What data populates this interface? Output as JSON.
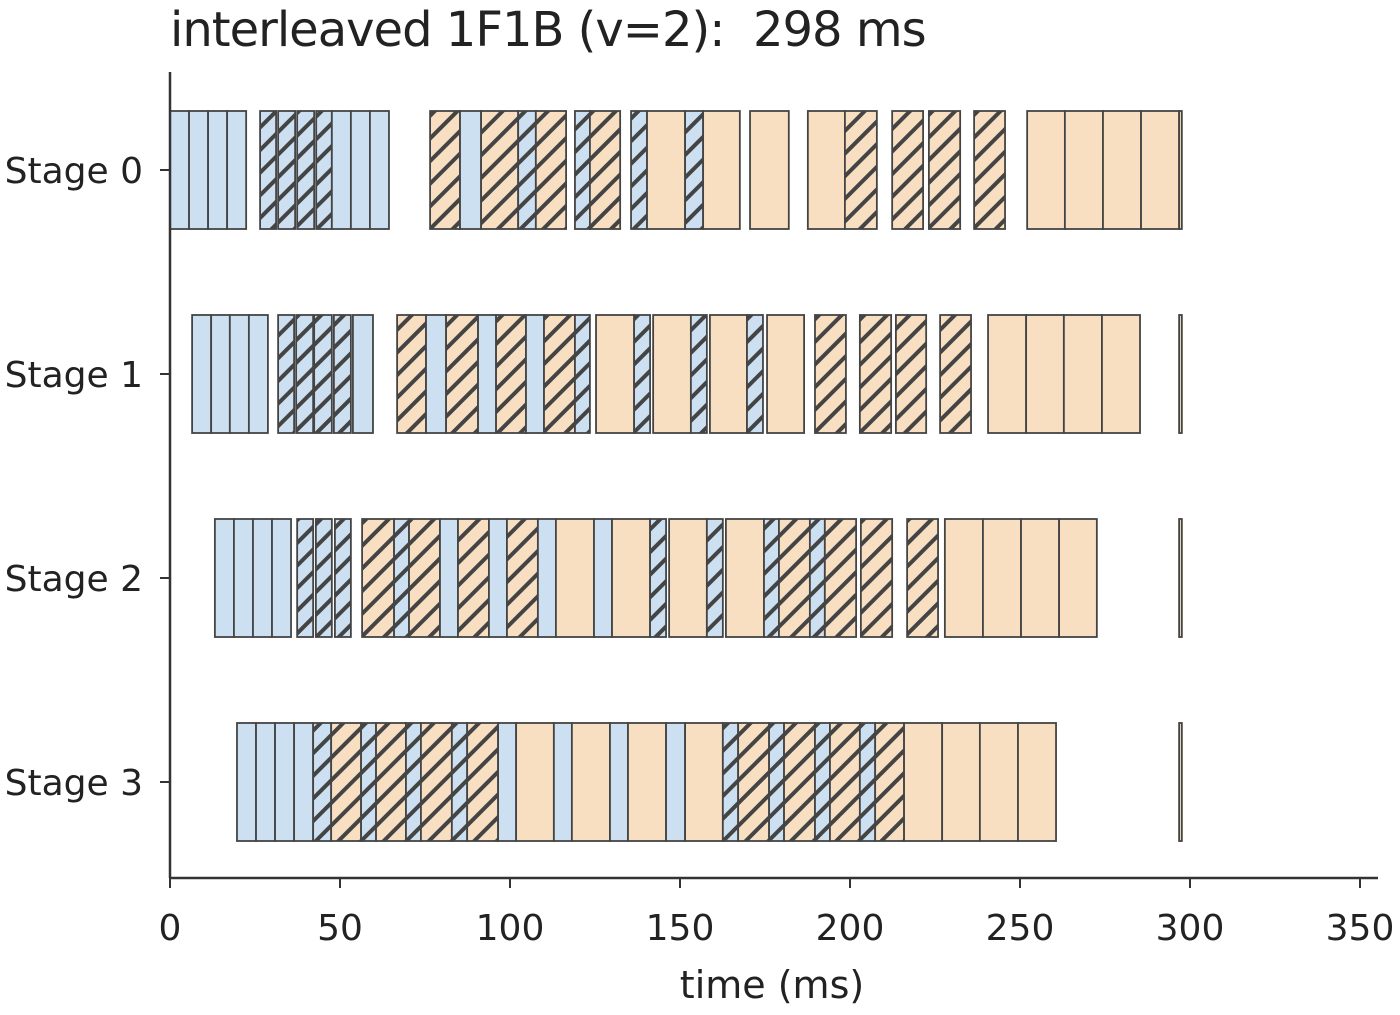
{
  "title": "interleaved 1F1B (v=2):  298 ms",
  "colors": {
    "forward": "#cce0f1",
    "backward": "#f8dfc2",
    "edge": "#444444",
    "axis": "#333333"
  },
  "chart_data": {
    "type": "gantt",
    "title": "interleaved 1F1B (v=2):  298 ms",
    "xlabel": "time (ms)",
    "ylabel": "",
    "xlim": [
      0,
      350
    ],
    "xticks": [
      0,
      50,
      100,
      150,
      200,
      250,
      300,
      350
    ],
    "xtick_labels": [
      "0",
      "50",
      "100",
      "150",
      "200",
      "250",
      "300",
      "350"
    ],
    "stages": [
      "Stage 0",
      "Stage 1",
      "Stage 2",
      "Stage 3"
    ],
    "legend": "none",
    "grid": false,
    "block_fields": [
      "kind",
      "start_ms",
      "end_ms",
      "hatched"
    ],
    "blocks": [
      [
        [
          "F",
          0.0,
          5.6,
          false
        ],
        [
          "F",
          5.6,
          11.2,
          false
        ],
        [
          "F",
          11.2,
          16.8,
          false
        ],
        [
          "F",
          16.8,
          22.4,
          false
        ],
        [
          "F",
          26.5,
          31.2,
          true
        ],
        [
          "F",
          31.8,
          36.8,
          true
        ],
        [
          "F",
          37.4,
          42.4,
          true
        ],
        [
          "F",
          43.0,
          47.6,
          true
        ],
        [
          "F",
          47.6,
          53.2,
          false
        ],
        [
          "F",
          53.2,
          58.8,
          false
        ],
        [
          "F",
          58.8,
          64.4,
          false
        ],
        [
          "B",
          76.5,
          85.3,
          true
        ],
        [
          "F",
          85.3,
          91.5,
          false
        ],
        [
          "B",
          91.5,
          102.4,
          true
        ],
        [
          "F",
          102.4,
          107.6,
          true
        ],
        [
          "B",
          107.6,
          116.5,
          true
        ],
        [
          "F",
          119.1,
          123.5,
          true
        ],
        [
          "B",
          123.5,
          132.4,
          true
        ],
        [
          "F",
          135.6,
          140.3,
          true
        ],
        [
          "B",
          140.3,
          151.5,
          false
        ],
        [
          "F",
          151.5,
          156.8,
          true
        ],
        [
          "B",
          156.8,
          167.6,
          false
        ],
        [
          "B",
          170.6,
          182.0,
          false
        ],
        [
          "B",
          187.6,
          198.5,
          false
        ],
        [
          "B",
          198.5,
          207.9,
          true
        ],
        [
          "B",
          212.4,
          221.5,
          true
        ],
        [
          "B",
          223.2,
          232.4,
          true
        ],
        [
          "B",
          236.5,
          245.6,
          true
        ],
        [
          "B",
          252.1,
          263.2,
          false
        ],
        [
          "B",
          263.2,
          274.4,
          false
        ],
        [
          "B",
          274.4,
          285.6,
          false
        ],
        [
          "B",
          285.6,
          296.8,
          false
        ],
        [
          "B",
          296.8,
          297.6,
          false
        ]
      ],
      [
        [
          "F",
          6.5,
          12.1,
          false
        ],
        [
          "F",
          12.1,
          17.6,
          false
        ],
        [
          "F",
          17.6,
          23.2,
          false
        ],
        [
          "F",
          23.2,
          28.8,
          false
        ],
        [
          "F",
          31.8,
          36.5,
          true
        ],
        [
          "F",
          37.1,
          42.1,
          true
        ],
        [
          "F",
          42.4,
          47.6,
          true
        ],
        [
          "F",
          48.2,
          53.2,
          true
        ],
        [
          "F",
          53.8,
          59.7,
          false
        ],
        [
          "B",
          66.8,
          75.3,
          true
        ],
        [
          "F",
          75.3,
          81.2,
          false
        ],
        [
          "B",
          81.2,
          90.6,
          true
        ],
        [
          "F",
          90.6,
          95.9,
          false
        ],
        [
          "B",
          95.9,
          104.7,
          true
        ],
        [
          "F",
          104.7,
          110.0,
          false
        ],
        [
          "B",
          110.0,
          119.1,
          true
        ],
        [
          "F",
          119.1,
          123.5,
          true
        ],
        [
          "B",
          125.3,
          136.5,
          false
        ],
        [
          "F",
          136.5,
          141.2,
          true
        ],
        [
          "B",
          142.1,
          153.2,
          false
        ],
        [
          "F",
          153.2,
          157.9,
          true
        ],
        [
          "B",
          158.8,
          169.7,
          false
        ],
        [
          "F",
          169.7,
          174.4,
          true
        ],
        [
          "B",
          175.6,
          186.5,
          false
        ],
        [
          "B",
          189.7,
          198.8,
          true
        ],
        [
          "B",
          202.9,
          212.1,
          true
        ],
        [
          "B",
          213.5,
          222.4,
          true
        ],
        [
          "B",
          226.5,
          235.6,
          true
        ],
        [
          "B",
          240.6,
          251.8,
          false
        ],
        [
          "B",
          251.8,
          262.9,
          false
        ],
        [
          "B",
          262.9,
          274.1,
          false
        ],
        [
          "B",
          274.1,
          285.3,
          false
        ],
        [
          "B",
          296.8,
          297.6,
          false
        ]
      ],
      [
        [
          "F",
          13.2,
          18.8,
          false
        ],
        [
          "F",
          18.8,
          24.4,
          false
        ],
        [
          "F",
          24.4,
          30.0,
          false
        ],
        [
          "F",
          30.0,
          35.6,
          false
        ],
        [
          "F",
          37.4,
          42.1,
          true
        ],
        [
          "F",
          42.9,
          47.6,
          true
        ],
        [
          "F",
          48.5,
          53.2,
          true
        ],
        [
          "B",
          56.5,
          65.9,
          true
        ],
        [
          "F",
          65.9,
          70.3,
          true
        ],
        [
          "B",
          70.3,
          79.4,
          true
        ],
        [
          "F",
          79.4,
          84.7,
          false
        ],
        [
          "B",
          84.7,
          93.8,
          true
        ],
        [
          "F",
          93.8,
          99.1,
          false
        ],
        [
          "B",
          99.1,
          108.2,
          true
        ],
        [
          "F",
          108.2,
          113.5,
          false
        ],
        [
          "B",
          113.5,
          124.7,
          false
        ],
        [
          "F",
          124.7,
          130.0,
          false
        ],
        [
          "B",
          130.0,
          141.2,
          false
        ],
        [
          "F",
          141.2,
          145.9,
          true
        ],
        [
          "B",
          146.8,
          157.9,
          false
        ],
        [
          "F",
          157.9,
          162.6,
          true
        ],
        [
          "B",
          163.5,
          174.7,
          false
        ],
        [
          "F",
          174.7,
          179.1,
          true
        ],
        [
          "B",
          179.1,
          188.2,
          true
        ],
        [
          "F",
          188.2,
          192.6,
          true
        ],
        [
          "B",
          192.6,
          201.8,
          true
        ],
        [
          "B",
          203.2,
          212.4,
          true
        ],
        [
          "B",
          216.8,
          225.9,
          true
        ],
        [
          "B",
          227.9,
          239.1,
          false
        ],
        [
          "B",
          239.1,
          250.3,
          false
        ],
        [
          "B",
          250.3,
          261.5,
          false
        ],
        [
          "B",
          261.5,
          272.6,
          false
        ],
        [
          "B",
          296.8,
          297.6,
          false
        ]
      ],
      [
        [
          "F",
          19.7,
          25.3,
          false
        ],
        [
          "F",
          25.3,
          30.9,
          false
        ],
        [
          "F",
          30.9,
          36.5,
          false
        ],
        [
          "F",
          36.5,
          42.1,
          false
        ],
        [
          "F",
          42.1,
          47.4,
          true
        ],
        [
          "B",
          47.4,
          56.2,
          true
        ],
        [
          "F",
          56.2,
          60.6,
          true
        ],
        [
          "B",
          60.6,
          69.4,
          true
        ],
        [
          "F",
          69.4,
          73.8,
          true
        ],
        [
          "B",
          73.8,
          82.9,
          true
        ],
        [
          "F",
          82.9,
          87.4,
          true
        ],
        [
          "B",
          87.4,
          96.5,
          true
        ],
        [
          "F",
          96.5,
          101.8,
          false
        ],
        [
          "B",
          101.8,
          112.9,
          false
        ],
        [
          "F",
          112.9,
          118.2,
          false
        ],
        [
          "B",
          118.2,
          129.4,
          false
        ],
        [
          "F",
          129.4,
          134.7,
          false
        ],
        [
          "B",
          134.7,
          145.9,
          false
        ],
        [
          "F",
          145.9,
          151.5,
          false
        ],
        [
          "B",
          151.5,
          162.6,
          false
        ],
        [
          "F",
          162.6,
          167.1,
          true
        ],
        [
          "B",
          167.1,
          176.2,
          true
        ],
        [
          "F",
          176.2,
          180.6,
          true
        ],
        [
          "B",
          180.6,
          189.7,
          true
        ],
        [
          "F",
          189.7,
          194.1,
          true
        ],
        [
          "B",
          194.1,
          202.9,
          true
        ],
        [
          "F",
          202.9,
          207.4,
          true
        ],
        [
          "B",
          207.4,
          215.9,
          true
        ],
        [
          "B",
          215.9,
          227.1,
          false
        ],
        [
          "B",
          227.1,
          238.2,
          false
        ],
        [
          "B",
          238.2,
          249.4,
          false
        ],
        [
          "B",
          249.4,
          260.6,
          false
        ],
        [
          "B",
          296.8,
          297.6,
          false
        ]
      ]
    ]
  }
}
